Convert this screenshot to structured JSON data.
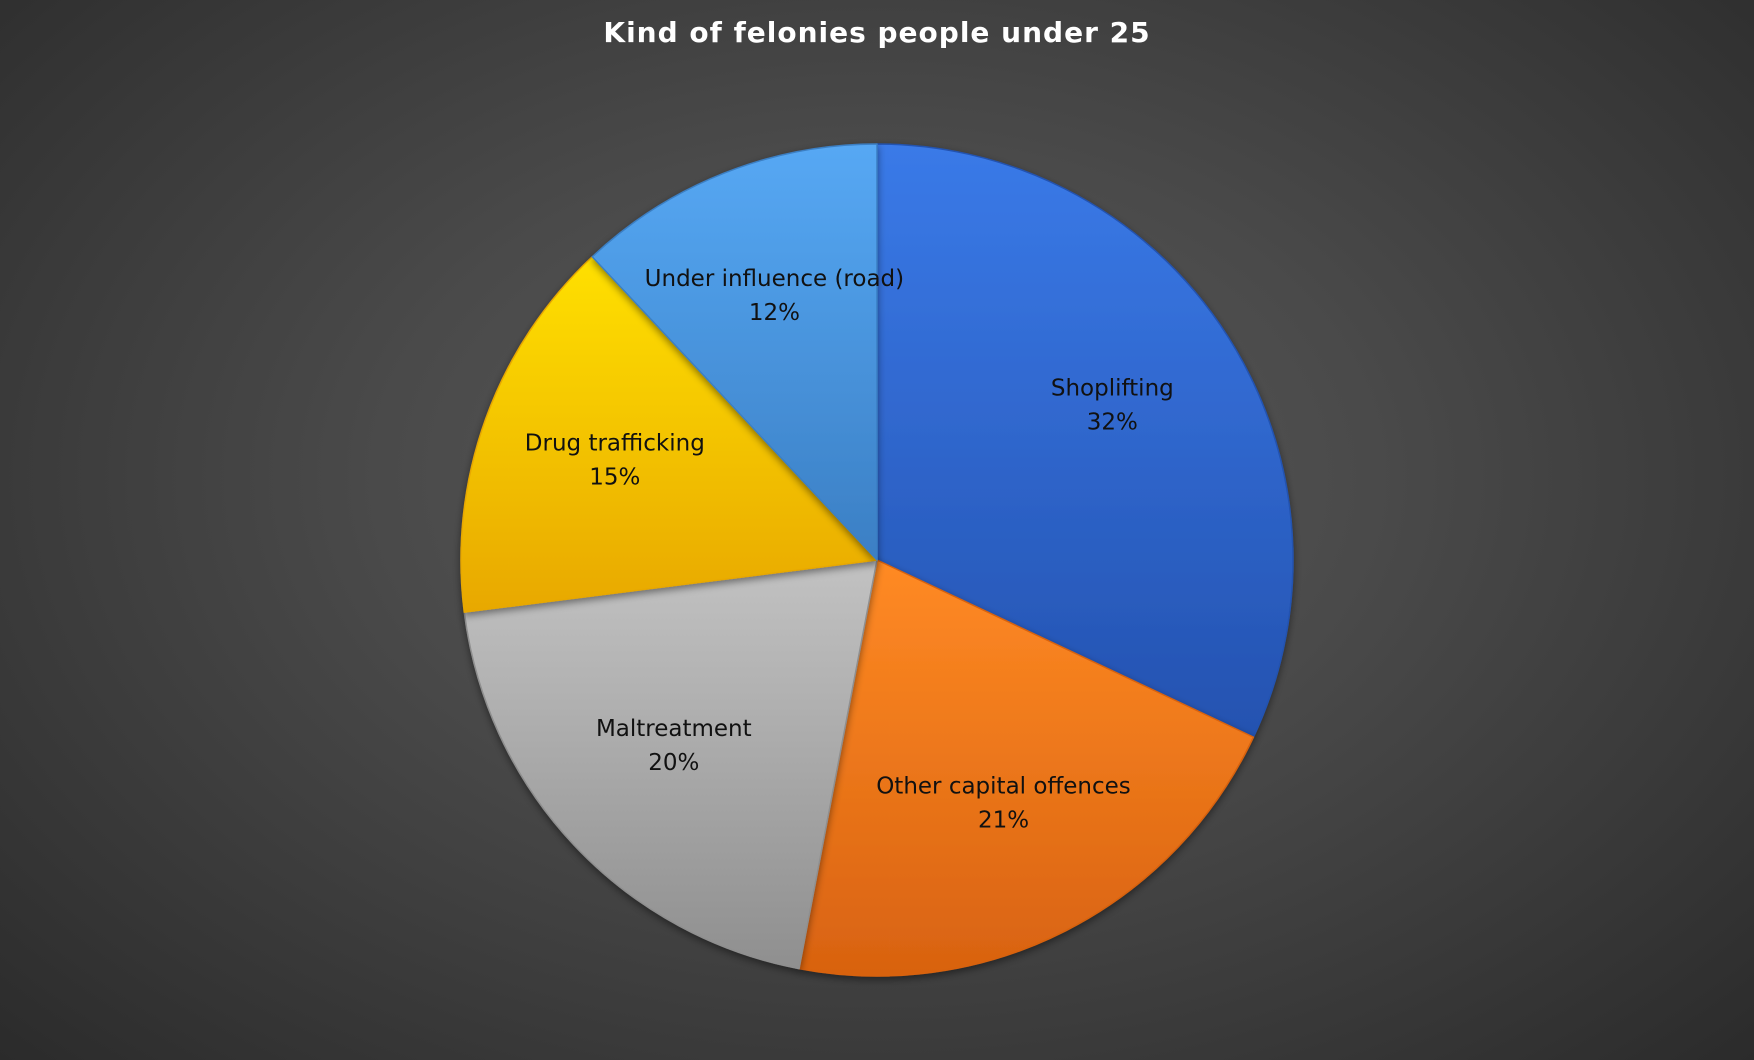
{
  "chart_data": {
    "type": "pie",
    "title": "Kind of felonies people under 25",
    "slices": [
      {
        "label": "Shoplifting",
        "value": 32,
        "value_label": "32%",
        "color": "#2f68d6",
        "color_light": "#3a7ae8",
        "color_dark": "#2452b0"
      },
      {
        "label": "Other capital offences",
        "value": 21,
        "value_label": "21%",
        "color": "#f57a1c",
        "color_light": "#ff8a24",
        "color_dark": "#d86210"
      },
      {
        "label": "Maltreatment",
        "value": 20,
        "value_label": "20%",
        "color": "#a6a6a6",
        "color_light": "#c2c2c2",
        "color_dark": "#8f8f8f"
      },
      {
        "label": "Drug trafficking",
        "value": 15,
        "value_label": "15%",
        "color": "#ffc000",
        "color_light": "#ffe000",
        "color_dark": "#e8a800"
      },
      {
        "label": "Under influence (road)",
        "value": 12,
        "value_label": "12%",
        "color": "#4a94df",
        "color_light": "#56a8f4",
        "color_dark": "#3b7fc4"
      }
    ],
    "start_angle_deg": 0,
    "direction": "clockwise",
    "legend": "none",
    "background": "#474747"
  }
}
